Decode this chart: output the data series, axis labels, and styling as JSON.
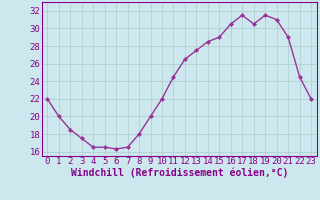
{
  "x": [
    0,
    1,
    2,
    3,
    4,
    5,
    6,
    7,
    8,
    9,
    10,
    11,
    12,
    13,
    14,
    15,
    16,
    17,
    18,
    19,
    20,
    21,
    22,
    23
  ],
  "y": [
    22,
    20,
    18.5,
    17.5,
    16.5,
    16.5,
    16.3,
    16.5,
    18,
    20,
    22,
    24.5,
    26.5,
    27.5,
    28.5,
    29,
    30.5,
    31.5,
    30.5,
    31.5,
    31,
    29,
    24.5,
    22
  ],
  "line_color": "#993399",
  "marker": "D",
  "marker_size": 2,
  "xlabel": "Windchill (Refroidissement éolien,°C)",
  "ylim": [
    15.5,
    33
  ],
  "xlim": [
    -0.5,
    23.5
  ],
  "yticks": [
    16,
    18,
    20,
    22,
    24,
    26,
    28,
    30,
    32
  ],
  "xticks": [
    0,
    1,
    2,
    3,
    4,
    5,
    6,
    7,
    8,
    9,
    10,
    11,
    12,
    13,
    14,
    15,
    16,
    17,
    18,
    19,
    20,
    21,
    22,
    23
  ],
  "background_color": "#cce8ee",
  "grid_color": "#aacccc",
  "tick_color": "#880088",
  "label_color": "#880088",
  "linewidth": 1.0,
  "tick_fontsize": 6.5,
  "xlabel_fontsize": 7.0
}
